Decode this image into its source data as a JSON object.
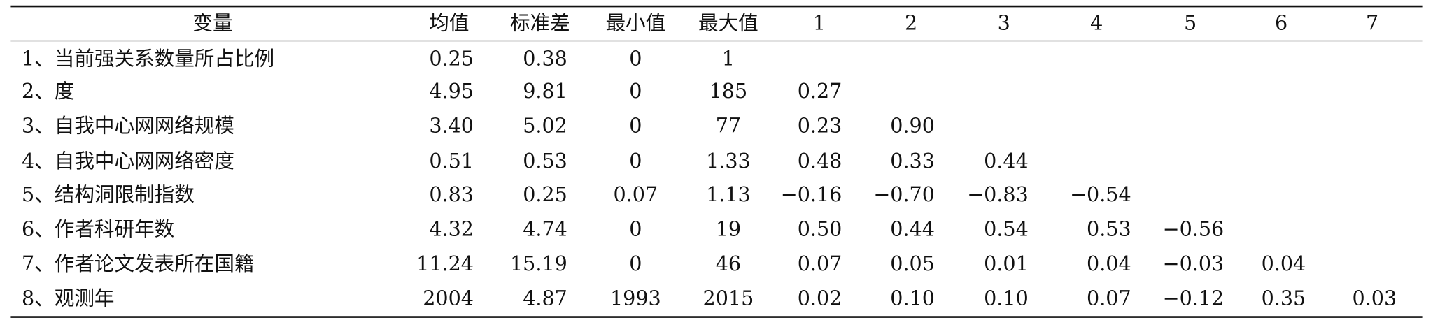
{
  "table": {
    "header": [
      "变量",
      "均值",
      "标准差",
      "最小值",
      "最大值",
      "1",
      "2",
      "3",
      "4",
      "5",
      "6",
      "7"
    ],
    "rows": [
      [
        "1、当前强关系数量所占比例",
        "0.25",
        "0.38",
        "0",
        "1"
      ],
      [
        "2、度",
        "4.95",
        "9.81",
        "0",
        "185",
        "0.27"
      ],
      [
        "3、自我中心网网络规模",
        "3.40",
        "5.02",
        "0",
        "77",
        "0.23",
        "0.90"
      ],
      [
        "4、自我中心网网络密度",
        "0.51",
        "0.53",
        "0",
        "1.33",
        "0.48",
        "0.33",
        "0.44"
      ],
      [
        "5、结构洞限制指数",
        "0.83",
        "0.25",
        "0.07",
        "1.13",
        "−0.16",
        "−0.70",
        "−0.83",
        "−0.54"
      ],
      [
        "6、作者科研年数",
        "4.32",
        "4.74",
        "0",
        "19",
        "0.50",
        "0.44",
        "0.54",
        "0.53",
        "−0.56"
      ],
      [
        "7、作者论文发表所在国籍",
        "11.24",
        "15.19",
        "0",
        "46",
        "0.07",
        "0.05",
        "0.01",
        "0.04",
        "−0.03",
        "0.04"
      ],
      [
        "8、观测年",
        "2004",
        "4.87",
        "1993",
        "2015",
        "0.02",
        "0.10",
        "0.10",
        "0.07",
        "−0.12",
        "0.35",
        "0.03"
      ]
    ]
  }
}
